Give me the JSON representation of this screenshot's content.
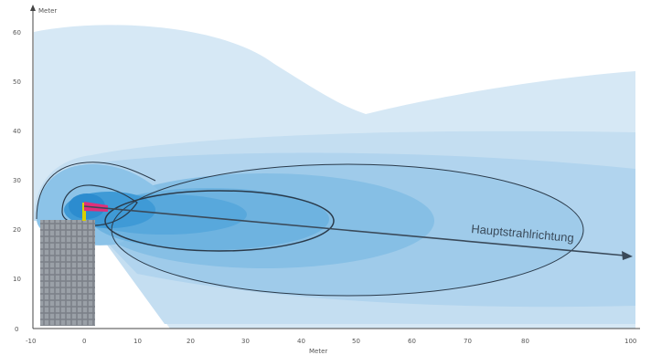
{
  "axes": {
    "y_title": "Meter",
    "x_title": "Meter",
    "y_ticks": [
      "0",
      "10",
      "20",
      "30",
      "40",
      "50",
      "60"
    ],
    "x_ticks": [
      "-10",
      "0",
      "10",
      "20",
      "30",
      "40",
      "50",
      "60",
      "70",
      "80",
      "100"
    ]
  },
  "direction_label": "Hauptstrahlrichtung",
  "colors": {
    "zone_outer": "#d6e8f5",
    "zone_2": "#bddbef",
    "zone_3": "#9fcbea",
    "zone_4": "#7ebde4",
    "zone_5": "#5eaedd",
    "zone_core": "#3a9bd6",
    "contour": "#2a3a4a",
    "tower": "#8a8f96",
    "antenna": "#e0307a"
  }
}
